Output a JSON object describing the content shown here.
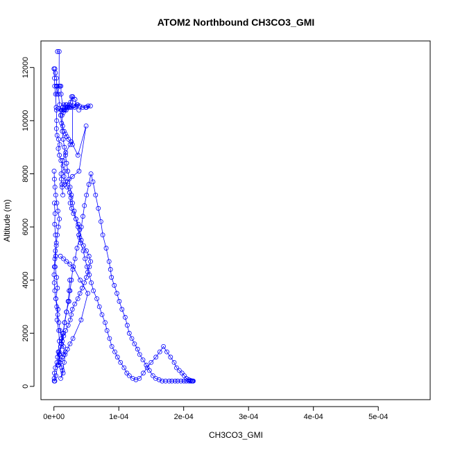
{
  "chart_data": {
    "type": "scatter",
    "title": "ATOM2 Northbound CH3CO3_GMI",
    "xlabel": "CH3CO3_GMI",
    "ylabel": "Altitude (m)",
    "xlim": [
      -2e-05,
      0.00058
    ],
    "ylim": [
      -500,
      13000
    ],
    "x_ticks": [
      0,
      0.0001,
      0.0002,
      0.0003,
      0.0004,
      0.0005
    ],
    "x_tick_labels": [
      "0e+00",
      "1e-04",
      "2e-04",
      "3e-04",
      "4e-04",
      "5e-04"
    ],
    "y_ticks": [
      0,
      2000,
      4000,
      6000,
      8000,
      10000,
      12000
    ],
    "y_tick_labels": [
      "0",
      "2000",
      "4000",
      "6000",
      "8000",
      "10000",
      "12000"
    ],
    "grid": false,
    "legend": "none",
    "marker": "open-circle",
    "connected": true,
    "color": "#0000ff",
    "series": [
      {
        "x": [
          1e-07,
          9e-07,
          1.2e-06,
          2.6e-06,
          3.5e-06,
          4.3e-06,
          3.9e-06,
          4.8e-06,
          7.2e-06,
          9.1e-06,
          6.6e-06,
          8.5e-06,
          1.08e-05,
          1.41e-05,
          1.66e-05,
          1.54e-05,
          1.83e-05,
          2.05e-05,
          2.42e-05,
          2.61e-05,
          2.5e-05,
          2.73e-05,
          3.01e-05,
          3.4e-05,
          3.75e-05,
          3.98e-05,
          3.84e-05,
          4.2e-05,
          4.56e-05,
          5.02e-05,
          5.41e-05,
          5.66e-05,
          5.48e-05,
          5.22e-05,
          5e-05,
          4.69e-05,
          4.35e-05,
          4.01e-05,
          3.69e-05,
          3.22e-05,
          2.83e-05,
          2.66e-05,
          2.51e-05,
          2.19e-05,
          1.82e-05,
          1.51e-05,
          1.28e-05,
          1.03e-05,
          8e-06,
          5.6e-06,
          4.6e-06,
          2.1e-06,
          9e-07,
          4e-07,
          5e-07,
          1.4e-06,
          3.2e-06,
          5.8e-06,
          8.1e-06,
          1.15e-05,
          1.45e-05,
          1.64e-05,
          1.93e-05,
          2.32e-05,
          2.49e-05,
          2.7e-05,
          2.91e-05,
          3.26e-05,
          3.56e-05,
          3.98e-05,
          4.22e-05,
          4.47e-05,
          4.71e-05,
          5.03e-05,
          5.38e-05,
          5.71e-05,
          6.02e-05,
          6.43e-05,
          6.85e-05,
          7.24e-05,
          7.53e-05,
          8.05e-05,
          8.5e-05,
          8.72e-05,
          8.88e-05,
          9.31e-05,
          9.71e-05,
          0.0001008,
          0.0001049,
          0.0001098,
          0.0001131,
          0.0001161,
          0.0001201,
          0.0001243,
          0.0001289,
          0.0001322,
          0.0001372,
          0.0001424,
          0.0001472,
          0.0001526,
          0.0001568,
          0.0001621,
          0.0001668,
          0.0001721,
          0.0001776,
          0.0001818,
          0.0001868,
          0.0001908,
          0.0001958,
          0.0002003,
          0.000204,
          0.0002078,
          0.0002105,
          0.0002129,
          0.0002138,
          0.0002149
        ],
        "y": [
          11950,
          11600,
          11300,
          11000,
          10500,
          10000,
          9700,
          9450,
          9300,
          9100,
          8950,
          8700,
          8500,
          8300,
          8100,
          7900,
          7700,
          7500,
          7300,
          7100,
          6900,
          6700,
          6500,
          6300,
          6100,
          5900,
          5700,
          5500,
          5300,
          5100,
          4900,
          4700,
          4500,
          4300,
          4100,
          3900,
          3700,
          3500,
          3300,
          3100,
          2900,
          2700,
          2500,
          2300,
          2100,
          1900,
          1700,
          1500,
          1300,
          1100,
          900,
          700,
          500,
          300,
          200,
          200,
          400,
          800,
          1200,
          1600,
          2000,
          2400,
          2800,
          3200,
          3600,
          4000,
          4400,
          4800,
          5200,
          5600,
          6000,
          6400,
          6800,
          7200,
          7600,
          8000,
          7700,
          7200,
          6700,
          6200,
          5700,
          5200,
          4700,
          4400,
          4100,
          3800,
          3500,
          3200,
          2900,
          2600,
          2300,
          2000,
          1800,
          1600,
          1400,
          1200,
          1000,
          800,
          600,
          400,
          300,
          250,
          200,
          200,
          200,
          200,
          200,
          200,
          200,
          200,
          200,
          200,
          200,
          200,
          200,
          200
        ]
      },
      {
        "x": [
          1.5e-06,
          2.3e-06,
          3.8e-06,
          4.5e-06,
          6.9e-06,
          8.7e-06,
          1.03e-05,
          1.19e-05,
          1.29e-05,
          1.43e-05,
          1.61e-05,
          1.78e-05,
          1.96e-05,
          2.14e-05,
          2.33e-05,
          2.49e-05,
          2.7e-05,
          2.87e-05,
          3.12e-05,
          3.39e-05,
          3.72e-05,
          3.86e-05,
          4.12e-05,
          4.52e-05,
          4.8e-05,
          5.09e-05,
          5.45e-05,
          5.77e-05,
          6.09e-05,
          6.62e-05,
          7.01e-05,
          7.41e-05,
          7.89e-05,
          8.18e-05,
          8.58e-05,
          8.93e-05,
          9.39e-05,
          9.79e-05,
          0.0001027,
          0.0001081,
          0.0001124,
          0.0001163,
          0.0001215,
          0.0001264,
          0.0001318,
          0.0001378,
          0.0001438,
          0.0001498,
          0.0001572,
          0.0001632,
          0.0001689,
          0.0001741,
          0.0001798,
          0.0001853,
          0.0001891,
          0.0001933,
          0.0001974,
          0.000201,
          0.0002043,
          0.0002079,
          0.0002108,
          0.0002125
        ],
        "y": [
          11950,
          11800,
          11600,
          11300,
          11000,
          10600,
          10200,
          9900,
          9600,
          9300,
          9000,
          8700,
          8400,
          8100,
          7800,
          7500,
          7200,
          6900,
          6600,
          6300,
          6000,
          5700,
          5400,
          5100,
          4800,
          4500,
          4200,
          3900,
          3600,
          3300,
          3000,
          2700,
          2400,
          2100,
          1800,
          1500,
          1300,
          1100,
          900,
          700,
          500,
          400,
          300,
          250,
          300,
          500,
          700,
          900,
          1100,
          1300,
          1500,
          1300,
          1100,
          900,
          700,
          600,
          500,
          400,
          300,
          250,
          220,
          200
        ]
      },
      {
        "x": [
          5.5e-06,
          8.1e-06,
          7.9e-06,
          5.1e-06,
          4e-06,
          4.7e-06,
          9.2e-06,
          1.08e-05,
          1.11e-05,
          1.38e-05,
          1.28e-05,
          1.53e-05,
          1.85e-05,
          1.96e-05,
          2.13e-05,
          2.39e-05,
          2.72e-05,
          2.9e-05,
          3.25e-05,
          3.44e-05,
          3.64e-05,
          3.21e-05,
          2.65e-05,
          2.43e-05,
          2.1e-05,
          1.87e-05,
          1.46e-05,
          1.12e-05,
          6.7e-06,
          3.9e-06
        ],
        "y": [
          12600,
          12600,
          11300,
          11300,
          11300,
          11000,
          11300,
          11300,
          11000,
          10500,
          10400,
          10600,
          10600,
          10600,
          10500,
          10500,
          10900,
          10900,
          10800,
          10550,
          10600,
          10500,
          10500,
          10500,
          10500,
          10400,
          10400,
          10400,
          10450,
          10400
        ]
      },
      {
        "x": [
          1.56e-05,
          1.94e-05,
          2.32e-05,
          2.97e-05,
          3.55e-05,
          3.95e-05,
          4.92e-05,
          5.27e-05,
          5.64e-05,
          5.02e-05,
          4.42e-05,
          3.85e-05
        ],
        "y": [
          10400,
          10500,
          10500,
          10550,
          10600,
          10550,
          10500,
          10550,
          10550,
          10500,
          10500,
          10400
        ]
      },
      {
        "x": [
          1.38e-05,
          1.22e-05,
          1.14e-05,
          1.1e-05,
          1.38e-05,
          1.82e-05,
          2.49e-05,
          2.66e-05,
          2.86e-05,
          2.9e-05,
          2.59e-05,
          2.38e-05,
          2.1e-05,
          1.89e-05,
          1.65e-05,
          1.44e-05,
          1.24e-05,
          1.35e-05,
          1.56e-05,
          1.76e-05,
          1.99e-05,
          2.26e-05,
          2.67e-05,
          3.7e-05,
          4.96e-05,
          3.87e-05,
          2.86e-05,
          2.11e-05,
          1.67e-05,
          1.26e-05
        ],
        "y": [
          7200,
          7600,
          7800,
          8000,
          8500,
          8800,
          9100,
          9200,
          9100,
          10900,
          10700,
          10600,
          10500,
          10400,
          10400,
          10300,
          10200,
          9800,
          9600,
          9500,
          9400,
          9300,
          9200,
          8700,
          9800,
          8100,
          7900,
          7700,
          7600,
          7500
        ]
      },
      {
        "x": [
          1.01e-05,
          1.49e-05,
          1.93e-05,
          2.47e-05,
          3.01e-05,
          4.04e-05,
          5.23e-05,
          4.19e-05,
          2.93e-05,
          2.48e-05,
          2.09e-05,
          1.76e-05,
          1.49e-05,
          1.25e-05,
          1.09e-05,
          9.4e-06,
          7.1e-06,
          8.9e-06,
          1.13e-05,
          1.38e-05,
          1.67e-05,
          1.96e-05,
          2.18e-05,
          2.34e-05,
          2.45e-05
        ],
        "y": [
          4900,
          4800,
          4700,
          4600,
          4500,
          4000,
          3500,
          2500,
          1800,
          1600,
          1400,
          1300,
          1200,
          1100,
          1000,
          900,
          800,
          1200,
          1600,
          2000,
          2400,
          2800,
          3200,
          3600,
          4000
        ]
      },
      {
        "x": [
          8e-07,
          1.7e-06,
          1.2e-06,
          2.3e-06,
          3.6e-06,
          2.7e-06,
          1.9e-06,
          4.2e-06,
          5.5e-06,
          3.1e-06,
          6.3e-06,
          4.8e-06,
          7.4e-06,
          8.3e-06,
          6.7e-06,
          9.8e-06,
          1.21e-05,
          1.42e-05,
          1.06e-05,
          1.32e-05,
          1.58e-05,
          1.72e-05,
          1.47e-05,
          1.18e-05,
          9.5e-06,
          7.7e-06,
          5.9e-06,
          4.4e-06,
          2.9e-06,
          1.3e-06,
          5e-07,
          2e-07,
          6e-07,
          1.5e-06,
          2.4e-06,
          3.7e-06,
          5.2e-06,
          6.9e-06,
          8.5e-06,
          6.2e-06,
          4.5e-06,
          2.8e-06,
          1.6e-06,
          8e-07,
          3e-07
        ],
        "y": [
          6900,
          6500,
          6100,
          5700,
          5300,
          4900,
          4500,
          4100,
          3700,
          3300,
          2900,
          2500,
          2100,
          1700,
          1300,
          900,
          700,
          500,
          300,
          600,
          900,
          1200,
          1500,
          1800,
          2100,
          2400,
          2700,
          3000,
          3300,
          3600,
          3900,
          4200,
          4500,
          4800,
          5100,
          5400,
          5700,
          6000,
          6300,
          6600,
          6900,
          7200,
          7500,
          7800,
          8100
        ]
      }
    ]
  }
}
